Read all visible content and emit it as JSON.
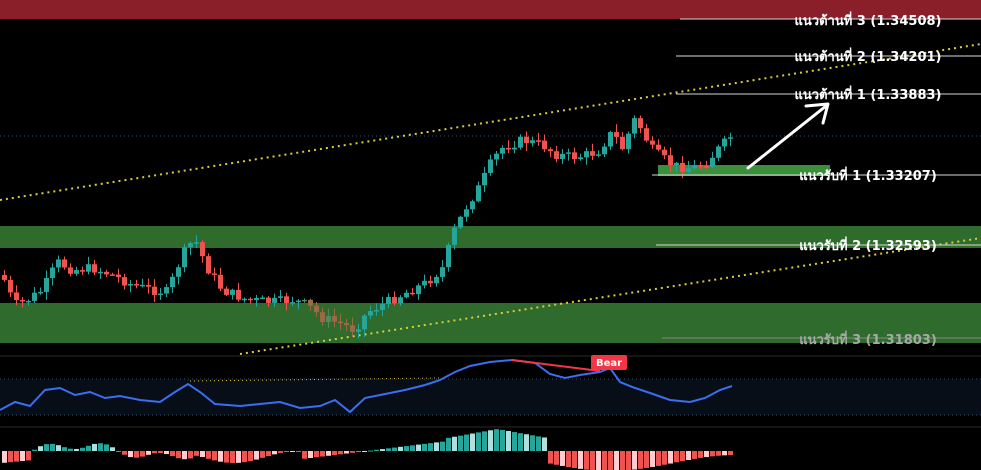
{
  "chart_data": {
    "type": "candlestick",
    "price_range": [
      1.3164,
      1.3478
    ],
    "resistance_levels": [
      {
        "label": "แนวต้านที่ 3 (1.34508)",
        "price": 1.34508
      },
      {
        "label": "แนวต้านที่ 2 (1.34201)",
        "price": 1.34201
      },
      {
        "label": "แนวต้านที่ 1 (1.33883)",
        "price": 1.33883
      }
    ],
    "support_levels": [
      {
        "label": "แนวรับที่ 1 (1.33207)",
        "price": 1.33207
      },
      {
        "label": "แนวรับที่ 2 (1.32593)",
        "price": 1.32593
      },
      {
        "label": "แนวรับที่ 3 (1.31803)",
        "price": 1.31803
      }
    ],
    "indicator_annotation": "Bear",
    "colors": {
      "up": "#26a69a",
      "down": "#ef5350",
      "support_zone": "#2f6b2c",
      "resistance_zone": "#8a1f2a",
      "trendline": "#d8cf3a",
      "rsi_line": "#3b6ef0",
      "bear_badge": "#f23645",
      "hist_up": "#26a69a",
      "hist_up_light": "#b2dfdb",
      "hist_down": "#ef5350",
      "hist_down_light": "#ffcdd2"
    }
  }
}
